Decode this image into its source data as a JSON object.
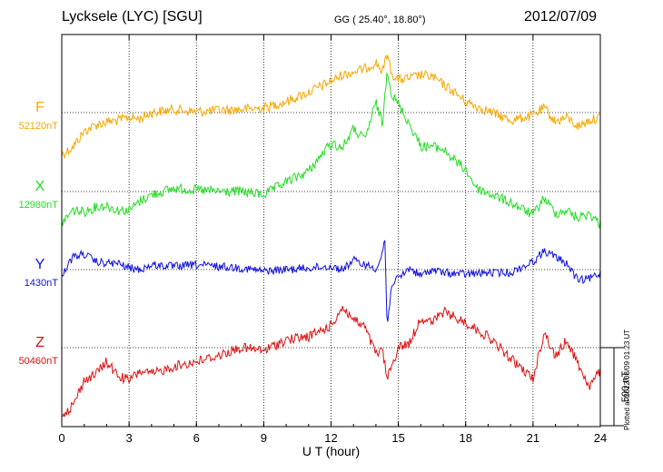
{
  "header": {
    "station": "Lycksele (LYC)  [SGU]",
    "coords": "GG ( 25.40°,  18.80°)",
    "date": "2012/07/09"
  },
  "plotted_note": "Plotted at 2012/08/09 01:23 UT",
  "colors": {
    "F": "#f5a800",
    "X": "#22dd22",
    "Y": "#1010dd",
    "Z": "#e01010",
    "grid": "#000000"
  },
  "chart_data": {
    "type": "line",
    "xlabel": "U T (hour)",
    "xlim": [
      0,
      24
    ],
    "xticks": [
      "0",
      "3",
      "6",
      "9",
      "12",
      "15",
      "18",
      "21",
      "24"
    ],
    "scale_bar_label": "500 nT",
    "series": [
      {
        "name": "F",
        "baseline_label": "52120nT",
        "x": [
          0,
          0.5,
          1,
          1.5,
          2,
          2.5,
          3,
          3.5,
          4,
          5,
          6,
          7,
          8,
          9,
          10,
          11,
          12,
          12.5,
          13,
          13.5,
          14,
          14.3,
          14.5,
          14.7,
          15,
          15.5,
          16,
          16.5,
          17,
          17.5,
          18,
          19,
          20,
          21,
          21.5,
          22,
          22.5,
          23,
          23.5,
          24
        ],
        "y": [
          -270,
          -220,
          -120,
          -80,
          -60,
          -50,
          -30,
          -40,
          0,
          20,
          5,
          15,
          20,
          30,
          70,
          130,
          200,
          240,
          260,
          280,
          320,
          260,
          380,
          250,
          210,
          220,
          240,
          230,
          180,
          130,
          70,
          10,
          -50,
          -20,
          30,
          -60,
          -30,
          -90,
          -50,
          -30
        ]
      },
      {
        "name": "X",
        "baseline_label": "12980nT",
        "x": [
          0,
          0.5,
          1,
          1.5,
          2,
          2.5,
          3,
          3.5,
          4,
          5,
          6,
          7,
          8,
          9,
          10,
          11,
          12,
          12.5,
          13,
          13.5,
          14,
          14.3,
          14.5,
          14.7,
          15,
          15.5,
          16,
          16.5,
          17,
          17.5,
          18,
          18.5,
          19,
          20,
          21,
          21.5,
          22,
          22.5,
          23,
          23.5,
          24
        ],
        "y": [
          -200,
          -120,
          -130,
          -100,
          -90,
          -120,
          -120,
          -60,
          -20,
          20,
          10,
          0,
          0,
          -20,
          60,
          130,
          310,
          280,
          400,
          330,
          570,
          430,
          800,
          620,
          560,
          430,
          290,
          290,
          270,
          200,
          140,
          20,
          -10,
          -70,
          -150,
          -40,
          -140,
          -120,
          -170,
          -140,
          -210
        ]
      },
      {
        "name": "Y",
        "baseline_label": "1430nT",
        "x": [
          0,
          0.5,
          1,
          1.5,
          2,
          2.5,
          3,
          3.5,
          4,
          5,
          6,
          7,
          8,
          9,
          10,
          11,
          12,
          12.5,
          13,
          13.5,
          14,
          14.2,
          14.4,
          14.5,
          14.7,
          15,
          15.5,
          16,
          16.5,
          17,
          18,
          19,
          20,
          21,
          21.5,
          22,
          22.5,
          23,
          23.5,
          24
        ],
        "y": [
          -30,
          80,
          100,
          50,
          40,
          40,
          10,
          0,
          30,
          20,
          30,
          20,
          10,
          -10,
          0,
          10,
          20,
          0,
          60,
          30,
          10,
          60,
          190,
          -380,
          -90,
          -60,
          10,
          -40,
          0,
          -20,
          -30,
          -20,
          -20,
          50,
          120,
          80,
          40,
          -70,
          -60,
          -20
        ]
      },
      {
        "name": "Z",
        "baseline_label": "50460nT",
        "x": [
          0,
          0.5,
          1,
          1.5,
          2,
          2.5,
          3,
          3.5,
          4,
          5,
          6,
          7,
          8,
          9,
          10,
          11,
          12,
          12.5,
          13,
          13.5,
          14,
          14.3,
          14.5,
          14.7,
          15,
          15.5,
          16,
          16.5,
          17,
          18,
          19,
          20,
          21,
          21.5,
          22,
          22.5,
          23,
          23.5,
          24
        ],
        "y": [
          -430,
          -370,
          -210,
          -170,
          -90,
          -180,
          -210,
          -150,
          -170,
          -120,
          -90,
          -50,
          0,
          -20,
          50,
          70,
          140,
          260,
          180,
          130,
          -40,
          -20,
          -200,
          -120,
          0,
          30,
          190,
          160,
          230,
          160,
          70,
          -70,
          -200,
          100,
          -60,
          50,
          -100,
          -250,
          -150
        ]
      }
    ]
  }
}
